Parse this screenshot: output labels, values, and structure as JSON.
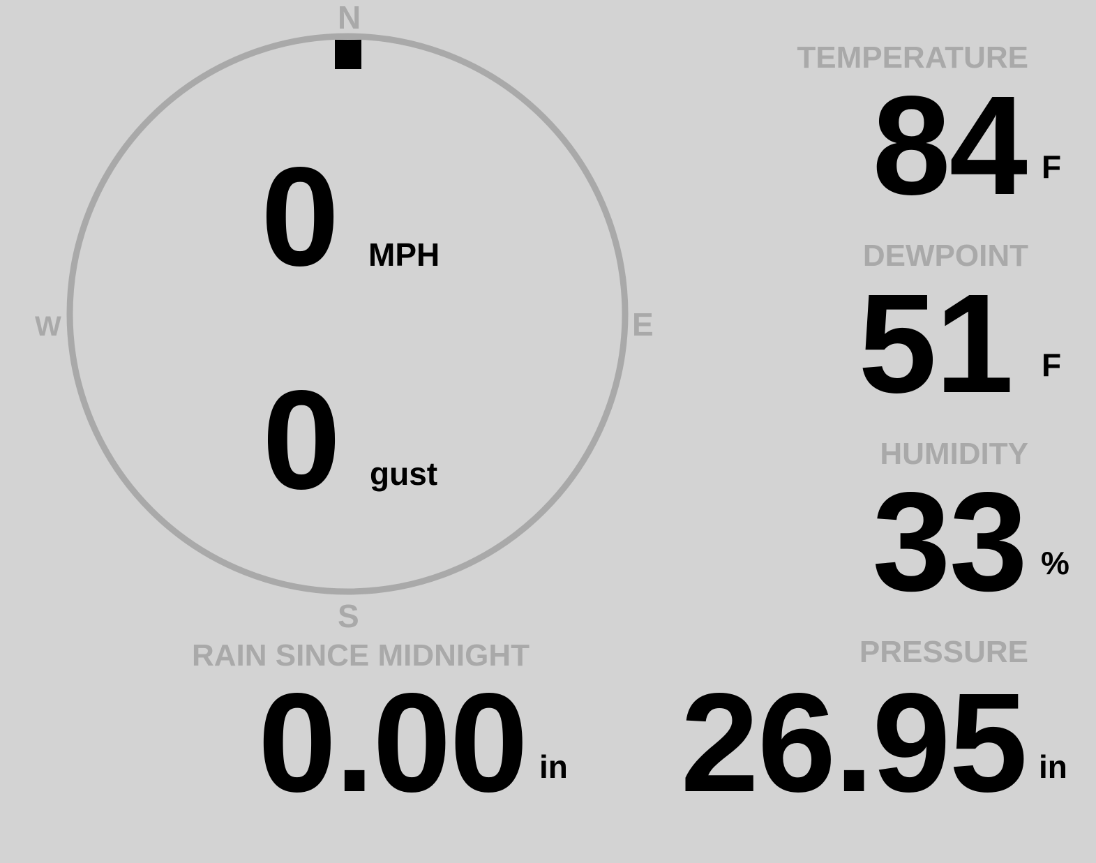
{
  "wind": {
    "compass": {
      "north": "N",
      "south": "S",
      "east": "E",
      "west": "W"
    },
    "direction_degrees": 0,
    "speed": "0",
    "speed_unit": "MPH",
    "gust": "0",
    "gust_unit": "gust",
    "colors": {
      "ring": "#a9a9a9",
      "pointer": "#000000"
    }
  },
  "temperature": {
    "label": "TEMPERATURE",
    "value": "84",
    "unit": "F"
  },
  "dewpoint": {
    "label": "DEWPOINT",
    "value": "51",
    "unit": "F"
  },
  "humidity": {
    "label": "HUMIDITY",
    "value": "33",
    "unit": "%"
  },
  "rain": {
    "label": "RAIN SINCE MIDNIGHT",
    "value": "0.00",
    "unit": "in"
  },
  "pressure": {
    "label": "PRESSURE",
    "value": "26.95",
    "unit": "in"
  },
  "colors": {
    "background": "#d3d3d3",
    "label": "#a9a9a9",
    "value": "#000000"
  }
}
